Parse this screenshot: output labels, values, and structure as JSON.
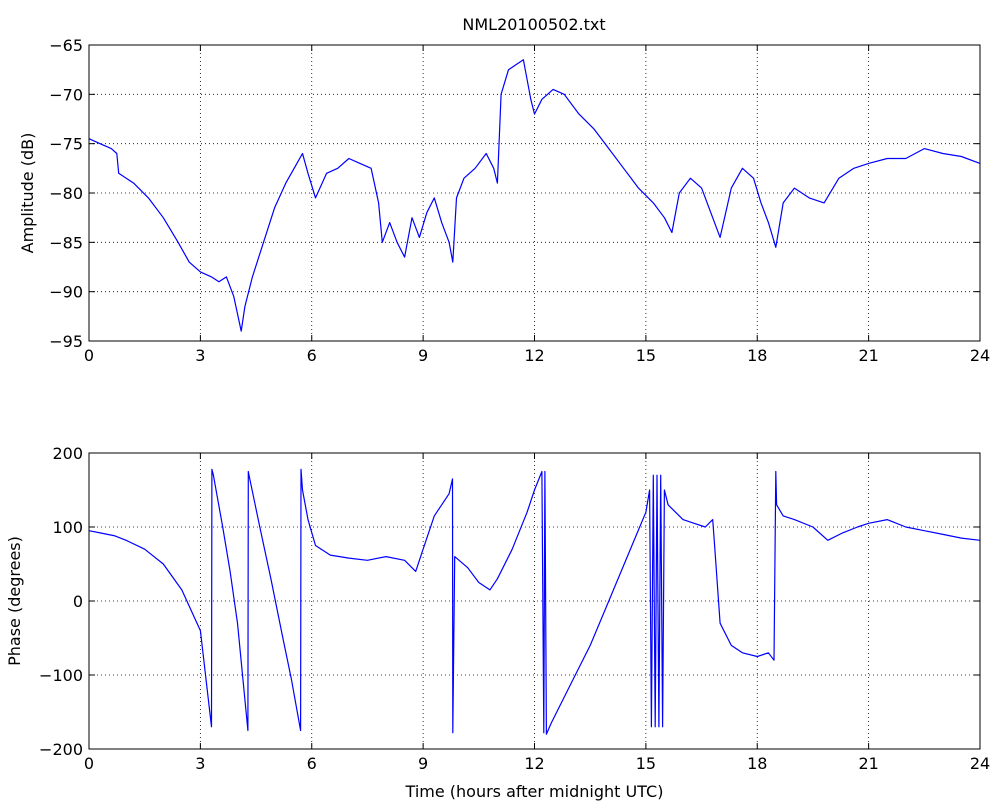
{
  "figure": {
    "title": "NML20100502.txt",
    "background": "#ffffff",
    "line_color": "#0000ff"
  },
  "chart_data": [
    {
      "type": "line",
      "title": "NML20100502.txt",
      "xlabel": "",
      "ylabel": "Amplitude (dB)",
      "xlim": [
        0,
        24
      ],
      "ylim": [
        -95,
        -65
      ],
      "xticks": [
        0,
        3,
        6,
        9,
        12,
        15,
        18,
        21,
        24
      ],
      "yticks": [
        -95,
        -90,
        -85,
        -80,
        -75,
        -70,
        -65
      ],
      "grid": true,
      "series": [
        {
          "color": "#0000ff",
          "x": [
            0,
            0.3,
            0.6,
            0.75,
            0.8,
            1.2,
            1.6,
            2.0,
            2.4,
            2.7,
            3.0,
            3.3,
            3.5,
            3.7,
            3.9,
            4.1,
            4.2,
            4.4,
            4.7,
            5.0,
            5.3,
            5.6,
            5.75,
            5.9,
            6.1,
            6.4,
            6.7,
            7.0,
            7.3,
            7.6,
            7.8,
            7.9,
            8.1,
            8.3,
            8.5,
            8.7,
            8.9,
            9.1,
            9.3,
            9.5,
            9.7,
            9.8,
            9.9,
            10.1,
            10.4,
            10.7,
            10.9,
            11.0,
            11.1,
            11.3,
            11.5,
            11.7,
            11.9,
            12.0,
            12.2,
            12.5,
            12.8,
            13.2,
            13.6,
            14.0,
            14.4,
            14.8,
            15.2,
            15.5,
            15.7,
            15.9,
            16.2,
            16.5,
            16.8,
            17.0,
            17.3,
            17.6,
            17.9,
            18.1,
            18.3,
            18.5,
            18.7,
            19.0,
            19.4,
            19.8,
            20.2,
            20.6,
            21.0,
            21.5,
            22.0,
            22.5,
            23.0,
            23.5,
            24.0
          ],
          "y": [
            -74.5,
            -75.0,
            -75.5,
            -76.0,
            -78.0,
            -79.0,
            -80.5,
            -82.5,
            -85.0,
            -87.0,
            -88.0,
            -88.5,
            -89.0,
            -88.5,
            -90.5,
            -94.0,
            -91.5,
            -88.5,
            -85.0,
            -81.5,
            -79.0,
            -77.0,
            -76.0,
            -78.0,
            -80.5,
            -78.0,
            -77.5,
            -76.5,
            -77.0,
            -77.5,
            -81.0,
            -85.0,
            -83.0,
            -85.0,
            -86.5,
            -82.5,
            -84.5,
            -82.0,
            -80.5,
            -83.0,
            -85.0,
            -87.0,
            -80.5,
            -78.5,
            -77.5,
            -76.0,
            -77.5,
            -79.0,
            -70.0,
            -67.5,
            -67.0,
            -66.5,
            -70.5,
            -72.0,
            -70.5,
            -69.5,
            -70.0,
            -72.0,
            -73.5,
            -75.5,
            -77.5,
            -79.5,
            -81.0,
            -82.5,
            -84.0,
            -80.0,
            -78.5,
            -79.5,
            -82.5,
            -84.5,
            -79.5,
            -77.5,
            -78.5,
            -81.0,
            -83.0,
            -85.5,
            -81.0,
            -79.5,
            -80.5,
            -81.0,
            -78.5,
            -77.5,
            -77.0,
            -76.5,
            -76.5,
            -75.5,
            -76.0,
            -76.3,
            -77.0
          ]
        }
      ]
    },
    {
      "type": "line",
      "title": "",
      "xlabel": "Time (hours after midnight UTC)",
      "ylabel": "Phase (degrees)",
      "xlim": [
        0,
        24
      ],
      "ylim": [
        -200,
        200
      ],
      "xticks": [
        0,
        3,
        6,
        9,
        12,
        15,
        18,
        21,
        24
      ],
      "yticks": [
        -200,
        -100,
        0,
        100,
        200
      ],
      "grid": true,
      "series": [
        {
          "color": "#0000ff",
          "x": [
            0,
            0.3,
            0.7,
            1.0,
            1.5,
            2.0,
            2.5,
            3.0,
            3.3,
            3.31,
            3.35,
            3.6,
            3.8,
            4.0,
            4.28,
            4.29,
            4.31,
            4.6,
            4.9,
            5.2,
            5.45,
            5.7,
            5.71,
            5.75,
            5.9,
            6.1,
            6.5,
            7.0,
            7.5,
            8.0,
            8.5,
            8.8,
            9.0,
            9.3,
            9.5,
            9.7,
            9.79,
            9.8,
            9.85,
            10.2,
            10.5,
            10.8,
            11.0,
            11.4,
            11.8,
            12.0,
            12.2,
            12.25,
            12.28,
            12.32,
            12.45,
            13.0,
            13.5,
            14.0,
            14.5,
            15.0,
            15.1,
            15.15,
            15.2,
            15.25,
            15.3,
            15.35,
            15.4,
            15.45,
            15.5,
            15.6,
            16.0,
            16.3,
            16.6,
            16.8,
            16.85,
            17.0,
            17.3,
            17.6,
            18.0,
            18.3,
            18.45,
            18.5,
            18.52,
            18.7,
            19.0,
            19.5,
            19.9,
            20.3,
            20.7,
            21.0,
            21.5,
            22.0,
            22.5,
            23.0,
            23.5,
            24.0
          ],
          "y": [
            95,
            92,
            88,
            82,
            70,
            50,
            15,
            -40,
            -170,
            178,
            170,
            100,
            40,
            -30,
            -175,
            175,
            170,
            100,
            30,
            -45,
            -105,
            -175,
            178,
            150,
            110,
            75,
            62,
            58,
            55,
            60,
            55,
            40,
            70,
            115,
            130,
            145,
            165,
            -178,
            60,
            45,
            25,
            15,
            30,
            70,
            120,
            150,
            175,
            -178,
            175,
            -180,
            -165,
            -110,
            -60,
            0,
            60,
            120,
            150,
            -170,
            170,
            -170,
            170,
            -170,
            170,
            -170,
            150,
            130,
            110,
            105,
            100,
            110,
            75,
            -30,
            -60,
            -70,
            -75,
            -70,
            -80,
            175,
            130,
            115,
            110,
            100,
            82,
            92,
            100,
            105,
            110,
            100,
            95,
            90,
            85,
            82
          ]
        }
      ]
    }
  ]
}
